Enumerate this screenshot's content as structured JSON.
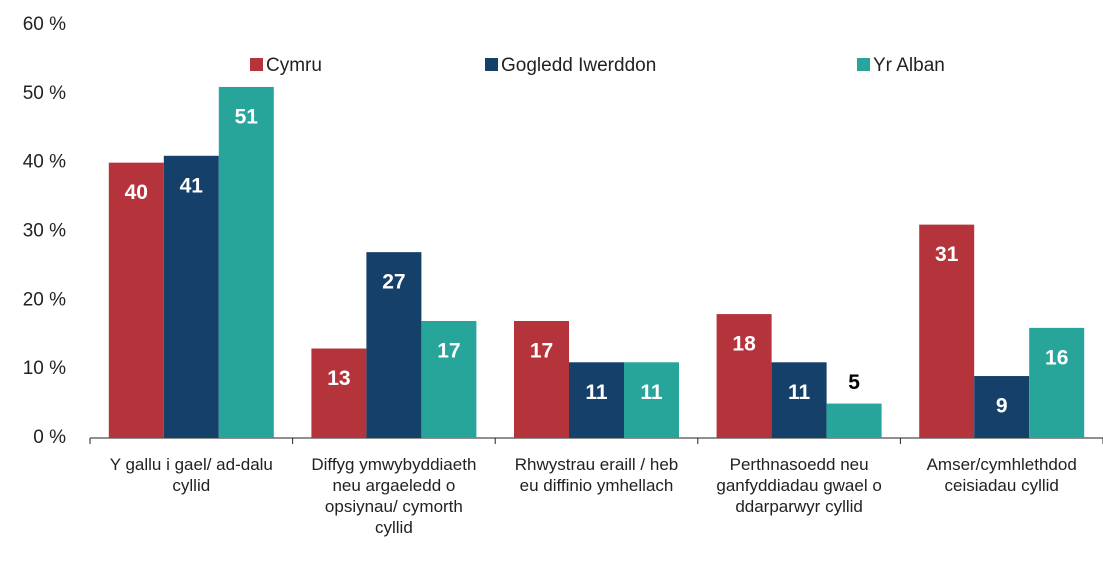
{
  "chart_data": {
    "type": "bar",
    "categories": [
      "Y gallu i gael/ ad-dalu cyllid",
      "Diffyg ymwybyddiaeth neu argaeledd o opsiynau/ cymorth cyllid",
      "Rhwystrau eraill / heb eu diffinio ymhellach",
      "Perthnasoedd neu ganfyddiadau gwael o ddarparwyr cyllid",
      "Amser/cymhlethdod ceisiadau cyllid"
    ],
    "series": [
      {
        "name": "Cymru",
        "color": "#b5343c",
        "values": [
          40,
          13,
          17,
          18,
          31
        ]
      },
      {
        "name": "Gogledd Iwerddon",
        "color": "#14406a",
        "values": [
          41,
          27,
          11,
          11,
          9
        ]
      },
      {
        "name": "Yr Alban",
        "color": "#27a59a",
        "values": [
          51,
          17,
          11,
          5,
          16
        ]
      }
    ],
    "ylim": [
      0,
      60
    ],
    "yticks": [
      {
        "value": 0,
        "label": "0 %"
      },
      {
        "value": 10,
        "label": "10 %"
      },
      {
        "value": 20,
        "label": "20 %"
      },
      {
        "value": 30,
        "label": "30 %"
      },
      {
        "value": 40,
        "label": "40 %"
      },
      {
        "value": 50,
        "label": "50 %"
      },
      {
        "value": 60,
        "label": "60 %"
      }
    ],
    "legend": "top",
    "grid": false
  }
}
